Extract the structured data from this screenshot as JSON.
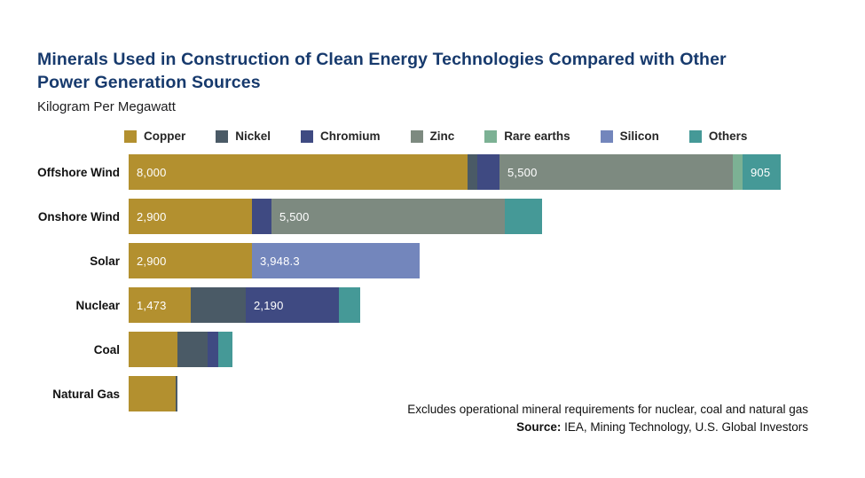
{
  "title": "Minerals Used in Construction of Clean Energy Technologies Compared with Other Power Generation Sources",
  "subtitle": "Kilogram Per Megawatt",
  "footer": {
    "note": "Excludes operational mineral requirements for nuclear, coal and natural gas",
    "source_label": "Source:",
    "source_text": " IEA, Mining Technology, U.S. Global Investors"
  },
  "colors": {
    "title_navy": "#173A6D",
    "copper": "#B3902F",
    "nickel": "#4A5A66",
    "chromium": "#3F4A82",
    "zinc": "#7D8A80",
    "rare_earths": "#7CB194",
    "silicon": "#7386BC",
    "others": "#459997"
  },
  "chart_data": {
    "type": "bar",
    "orientation": "horizontal",
    "stacked": true,
    "unit": "kilogram per megawatt",
    "title": "Minerals Used in Construction of Clean Energy Technologies Compared with Other Power Generation Sources",
    "xlabel": "Kilogram Per Megawatt",
    "xlim": [
      0,
      15409
    ],
    "grid": false,
    "legend_position": "top",
    "categories": [
      "Offshore Wind",
      "Onshore Wind",
      "Solar",
      "Nuclear",
      "Coal",
      "Natural Gas"
    ],
    "series": [
      {
        "name": "Copper",
        "color": "#B3902F",
        "values": [
          8000,
          2900,
          2900,
          1473,
          1150,
          1100
        ],
        "labels": [
          "8,000",
          "2,900",
          "2,900",
          "1,473",
          "",
          ""
        ]
      },
      {
        "name": "Nickel",
        "color": "#4A5A66",
        "values": [
          240,
          0,
          0,
          1297,
          721,
          16
        ],
        "labels": [
          "",
          "",
          "",
          "",
          "",
          ""
        ]
      },
      {
        "name": "Chromium",
        "color": "#3F4A82",
        "values": [
          525,
          470,
          0,
          2190,
          254,
          0
        ],
        "labels": [
          "",
          "",
          "",
          "2,190",
          "",
          ""
        ]
      },
      {
        "name": "Zinc",
        "color": "#7D8A80",
        "values": [
          5500,
          5500,
          0,
          0,
          0,
          0
        ],
        "labels": [
          "5,500",
          "5,500",
          "",
          "",
          "",
          ""
        ]
      },
      {
        "name": "Rare earths",
        "color": "#7CB194",
        "values": [
          239,
          0,
          0,
          0,
          0,
          0
        ],
        "labels": [
          "",
          "",
          "",
          "",
          "",
          ""
        ]
      },
      {
        "name": "Silicon",
        "color": "#7386BC",
        "values": [
          0,
          0,
          3948.3,
          0,
          0,
          0
        ],
        "labels": [
          "",
          "",
          "3,948.3",
          "",
          "",
          ""
        ]
      },
      {
        "name": "Others",
        "color": "#459997",
        "values": [
          905,
          880,
          0,
          500,
          330,
          0
        ],
        "labels": [
          "905",
          "",
          "",
          "",
          "",
          ""
        ]
      }
    ]
  }
}
